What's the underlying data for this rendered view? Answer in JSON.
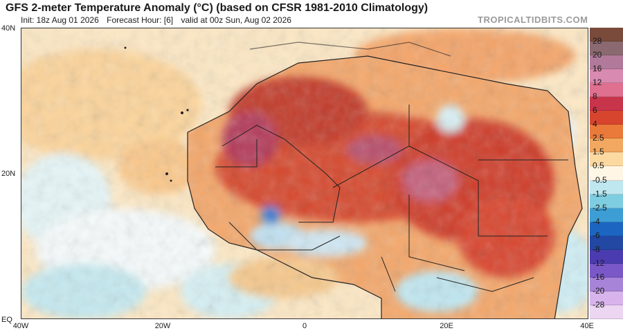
{
  "header": {
    "title": "GFS 2-meter Temperature Anomaly (°C) (based on CFSR 1981-2010 Climatology)",
    "init": "Init: 18z Aug 01 2026",
    "forecast_hour": "Forecast Hour: [6]",
    "valid": "valid at 00z Sun, Aug 02 2026"
  },
  "watermark": "TROPICALTIDBITS.COM",
  "axes": {
    "lat_labels": [
      "40N",
      "20N",
      "EQ"
    ],
    "lon_labels": [
      "40W",
      "20W",
      "0",
      "20E",
      "40E"
    ]
  },
  "colorbar": {
    "labels": [
      "28",
      "20",
      "16",
      "12",
      "8",
      "6",
      "4",
      "2.5",
      "1.5",
      "0.5",
      "-0.5",
      "-1.5",
      "-2.5",
      "-4",
      "-6",
      "-8",
      "-12",
      "-16",
      "-20",
      "-28"
    ],
    "colors": [
      "#7a4a3a",
      "#8a6a70",
      "#b27a9a",
      "#d98ab0",
      "#e07090",
      "#c8344a",
      "#d8452e",
      "#ea7a3a",
      "#f2a860",
      "#fbd9a0",
      "#fff6e6",
      "#bfe7ef",
      "#7fcde0",
      "#3c9ed4",
      "#1c66c2",
      "#2248a4",
      "#4a3cb0",
      "#7a58c8",
      "#a884d8",
      "#d8b4ec",
      "#ecd6f2"
    ]
  }
}
